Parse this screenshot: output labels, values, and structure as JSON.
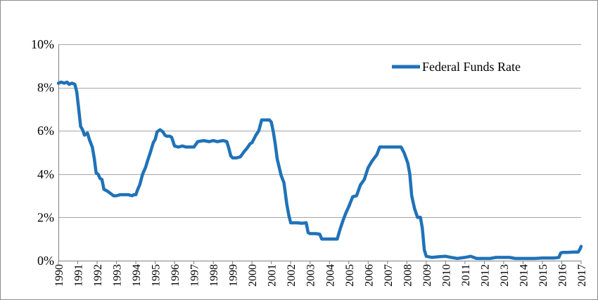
{
  "chart_data": {
    "type": "line",
    "title": "",
    "xlabel": "",
    "ylabel": "",
    "x_ticks": [
      1990,
      1991,
      1992,
      1993,
      1994,
      1995,
      1996,
      1997,
      1998,
      1999,
      2000,
      2001,
      2002,
      2003,
      2004,
      2005,
      2006,
      2007,
      2008,
      2009,
      2010,
      2011,
      2012,
      2013,
      2014,
      2015,
      2016,
      2017
    ],
    "x_tick_labels": [
      "1990",
      "1991",
      "1992",
      "1993",
      "1994",
      "1995",
      "1996",
      "1997",
      "1998",
      "1999",
      "2000",
      "2001",
      "2002",
      "2003",
      "2004",
      "2005",
      "2006",
      "2007",
      "2008",
      "2009",
      "2010",
      "2011",
      "2012",
      "2013",
      "2014",
      "2015",
      "2016",
      "2017"
    ],
    "xlim": [
      1990,
      2017
    ],
    "y_ticks": [
      0,
      2,
      4,
      6,
      8,
      10
    ],
    "y_tick_labels": [
      "0%",
      "2%",
      "4%",
      "6%",
      "8%",
      "10%"
    ],
    "ylim": [
      0,
      10
    ],
    "grid": "horizontal",
    "legend_position": "top-right",
    "colors": {
      "series": "#1F72B8",
      "grid": "#A6A6A6",
      "axis": "#808080"
    },
    "series": [
      {
        "name": "Federal Funds Rate",
        "x": [
          1990.0,
          1990.15,
          1990.3,
          1990.45,
          1990.55,
          1990.7,
          1990.85,
          1990.95,
          1991.05,
          1991.15,
          1991.25,
          1991.35,
          1991.5,
          1991.6,
          1991.75,
          1991.85,
          1991.95,
          1992.05,
          1992.15,
          1992.25,
          1992.35,
          1992.45,
          1992.55,
          1992.7,
          1992.85,
          1993.0,
          1993.2,
          1993.4,
          1993.6,
          1993.8,
          1993.9,
          1994.0,
          1994.1,
          1994.2,
          1994.35,
          1994.5,
          1994.6,
          1994.75,
          1994.9,
          1995.0,
          1995.1,
          1995.25,
          1995.4,
          1995.5,
          1995.6,
          1995.75,
          1995.85,
          1996.0,
          1996.2,
          1996.4,
          1996.6,
          1996.8,
          1997.0,
          1997.2,
          1997.5,
          1997.8,
          1998.0,
          1998.2,
          1998.5,
          1998.7,
          1998.8,
          1998.9,
          1999.0,
          1999.2,
          1999.4,
          1999.6,
          1999.75,
          1999.9,
          2000.0,
          2000.2,
          2000.35,
          2000.5,
          2000.7,
          2000.9,
          2001.0,
          2001.1,
          2001.2,
          2001.3,
          2001.5,
          2001.65,
          2001.8,
          2001.9,
          2002.0,
          2002.3,
          2002.6,
          2002.8,
          2002.9,
          2003.0,
          2003.3,
          2003.5,
          2003.6,
          2003.8,
          2004.0,
          2004.25,
          2004.4,
          2004.55,
          2004.7,
          2004.85,
          2005.0,
          2005.2,
          2005.4,
          2005.6,
          2005.8,
          2006.0,
          2006.2,
          2006.45,
          2006.6,
          2006.8,
          2007.0,
          2007.3,
          2007.55,
          2007.7,
          2007.85,
          2007.95,
          2008.05,
          2008.15,
          2008.25,
          2008.4,
          2008.55,
          2008.7,
          2008.8,
          2008.9,
          2009.0,
          2009.3,
          2009.6,
          2010.0,
          2010.3,
          2010.6,
          2011.0,
          2011.3,
          2011.6,
          2012.0,
          2012.3,
          2012.6,
          2013.0,
          2013.3,
          2013.6,
          2014.0,
          2014.3,
          2014.6,
          2015.0,
          2015.3,
          2015.6,
          2015.85,
          2015.95,
          2016.05,
          2016.3,
          2016.6,
          2016.85,
          2016.95,
          2017.0
        ],
        "values": [
          8.2,
          8.25,
          8.2,
          8.25,
          8.15,
          8.2,
          8.15,
          7.8,
          7.0,
          6.2,
          6.05,
          5.8,
          5.9,
          5.6,
          5.25,
          4.75,
          4.05,
          4.0,
          3.8,
          3.75,
          3.3,
          3.25,
          3.2,
          3.1,
          3.0,
          3.0,
          3.05,
          3.05,
          3.05,
          3.0,
          3.05,
          3.05,
          3.3,
          3.5,
          4.0,
          4.3,
          4.6,
          5.0,
          5.45,
          5.6,
          5.95,
          6.05,
          5.95,
          5.8,
          5.75,
          5.75,
          5.7,
          5.3,
          5.25,
          5.3,
          5.25,
          5.25,
          5.25,
          5.5,
          5.55,
          5.5,
          5.55,
          5.5,
          5.55,
          5.5,
          5.2,
          4.85,
          4.75,
          4.75,
          4.8,
          5.05,
          5.2,
          5.4,
          5.45,
          5.8,
          6.0,
          6.5,
          6.5,
          6.5,
          6.4,
          5.95,
          5.4,
          4.7,
          3.95,
          3.6,
          2.6,
          2.1,
          1.75,
          1.75,
          1.73,
          1.75,
          1.3,
          1.25,
          1.25,
          1.22,
          1.0,
          1.0,
          1.0,
          1.0,
          1.0,
          1.45,
          1.85,
          2.2,
          2.5,
          2.95,
          3.0,
          3.5,
          3.75,
          4.3,
          4.6,
          4.9,
          5.25,
          5.25,
          5.25,
          5.25,
          5.25,
          5.25,
          5.0,
          4.75,
          4.5,
          4.0,
          3.0,
          2.4,
          2.0,
          2.0,
          1.5,
          0.5,
          0.2,
          0.15,
          0.18,
          0.2,
          0.15,
          0.1,
          0.15,
          0.2,
          0.1,
          0.1,
          0.1,
          0.15,
          0.15,
          0.15,
          0.1,
          0.1,
          0.1,
          0.1,
          0.12,
          0.12,
          0.12,
          0.15,
          0.36,
          0.38,
          0.38,
          0.4,
          0.4,
          0.55,
          0.66
        ]
      }
    ]
  }
}
